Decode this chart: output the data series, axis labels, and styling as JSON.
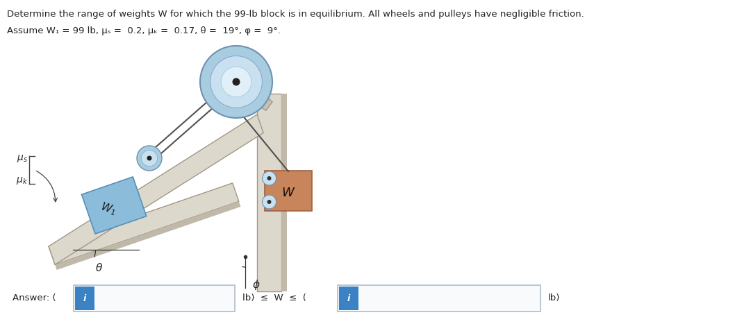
{
  "title_line1": "Determine the range of weights W for which the 99-lb block is in equilibrium. All wheels and pulleys have negligible friction.",
  "title_line2": "Assume W₁ = 99 lb, μₛ =  0.2, μₖ =  0.17, θ =  19°, φ =  9°.",
  "answer_label": "Answer: (",
  "answer_mid": "lb)  ≤  W  ≤  (",
  "answer_end": "lb)",
  "bg_color": "#ffffff",
  "block_blue": "#8bbcda",
  "block_brown": "#c8845a",
  "ramp_light": "#ddd8cc",
  "ramp_dark": "#c0b8a8",
  "ramp_edge": "#a09888",
  "input_bg": "#f0f4f8",
  "input_border": "#b0bcc8",
  "btn_blue": "#3a82c4",
  "btn_text": "#ffffff",
  "rope_color": "#505050",
  "pulley_outer": "#a8cce0",
  "pulley_mid": "#c8e0ef",
  "pulley_inner": "#e0eff8",
  "pulley_center": "#202020",
  "arm_color": "#b0a898",
  "wall_color": "#c8c0b0",
  "wall_shadow": "#a8a098"
}
